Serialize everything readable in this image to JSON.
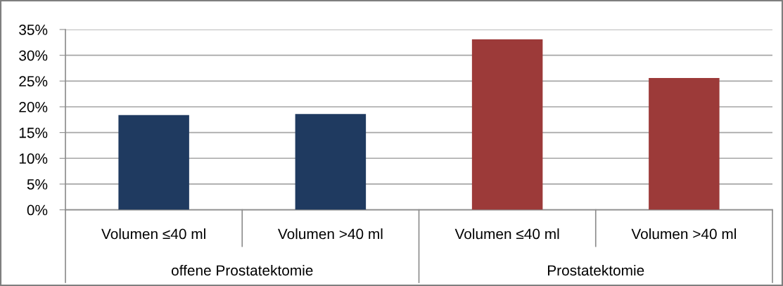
{
  "chart_data": {
    "type": "bar",
    "categories": [
      "Volumen ≤40 ml",
      "Volumen >40 ml",
      "Volumen ≤40 ml",
      "Volumen >40 ml"
    ],
    "values": [
      18.4,
      18.6,
      33.1,
      25.6
    ],
    "colors": [
      "#1f3a60",
      "#1f3a60",
      "#9c3a39",
      "#9c3a39"
    ],
    "annotations": [
      "offene Prostatektomie",
      "Prostatektomie"
    ],
    "ylim": [
      0,
      35
    ],
    "yticks": [
      {
        "value": 0,
        "label": "0%"
      },
      {
        "value": 5,
        "label": "5%"
      },
      {
        "value": 10,
        "label": "10%"
      },
      {
        "value": 15,
        "label": "15%"
      },
      {
        "value": 20,
        "label": "20%"
      },
      {
        "value": 25,
        "label": "25%"
      },
      {
        "value": 30,
        "label": "30%"
      },
      {
        "value": 35,
        "label": "35%"
      }
    ],
    "grid": "y"
  }
}
